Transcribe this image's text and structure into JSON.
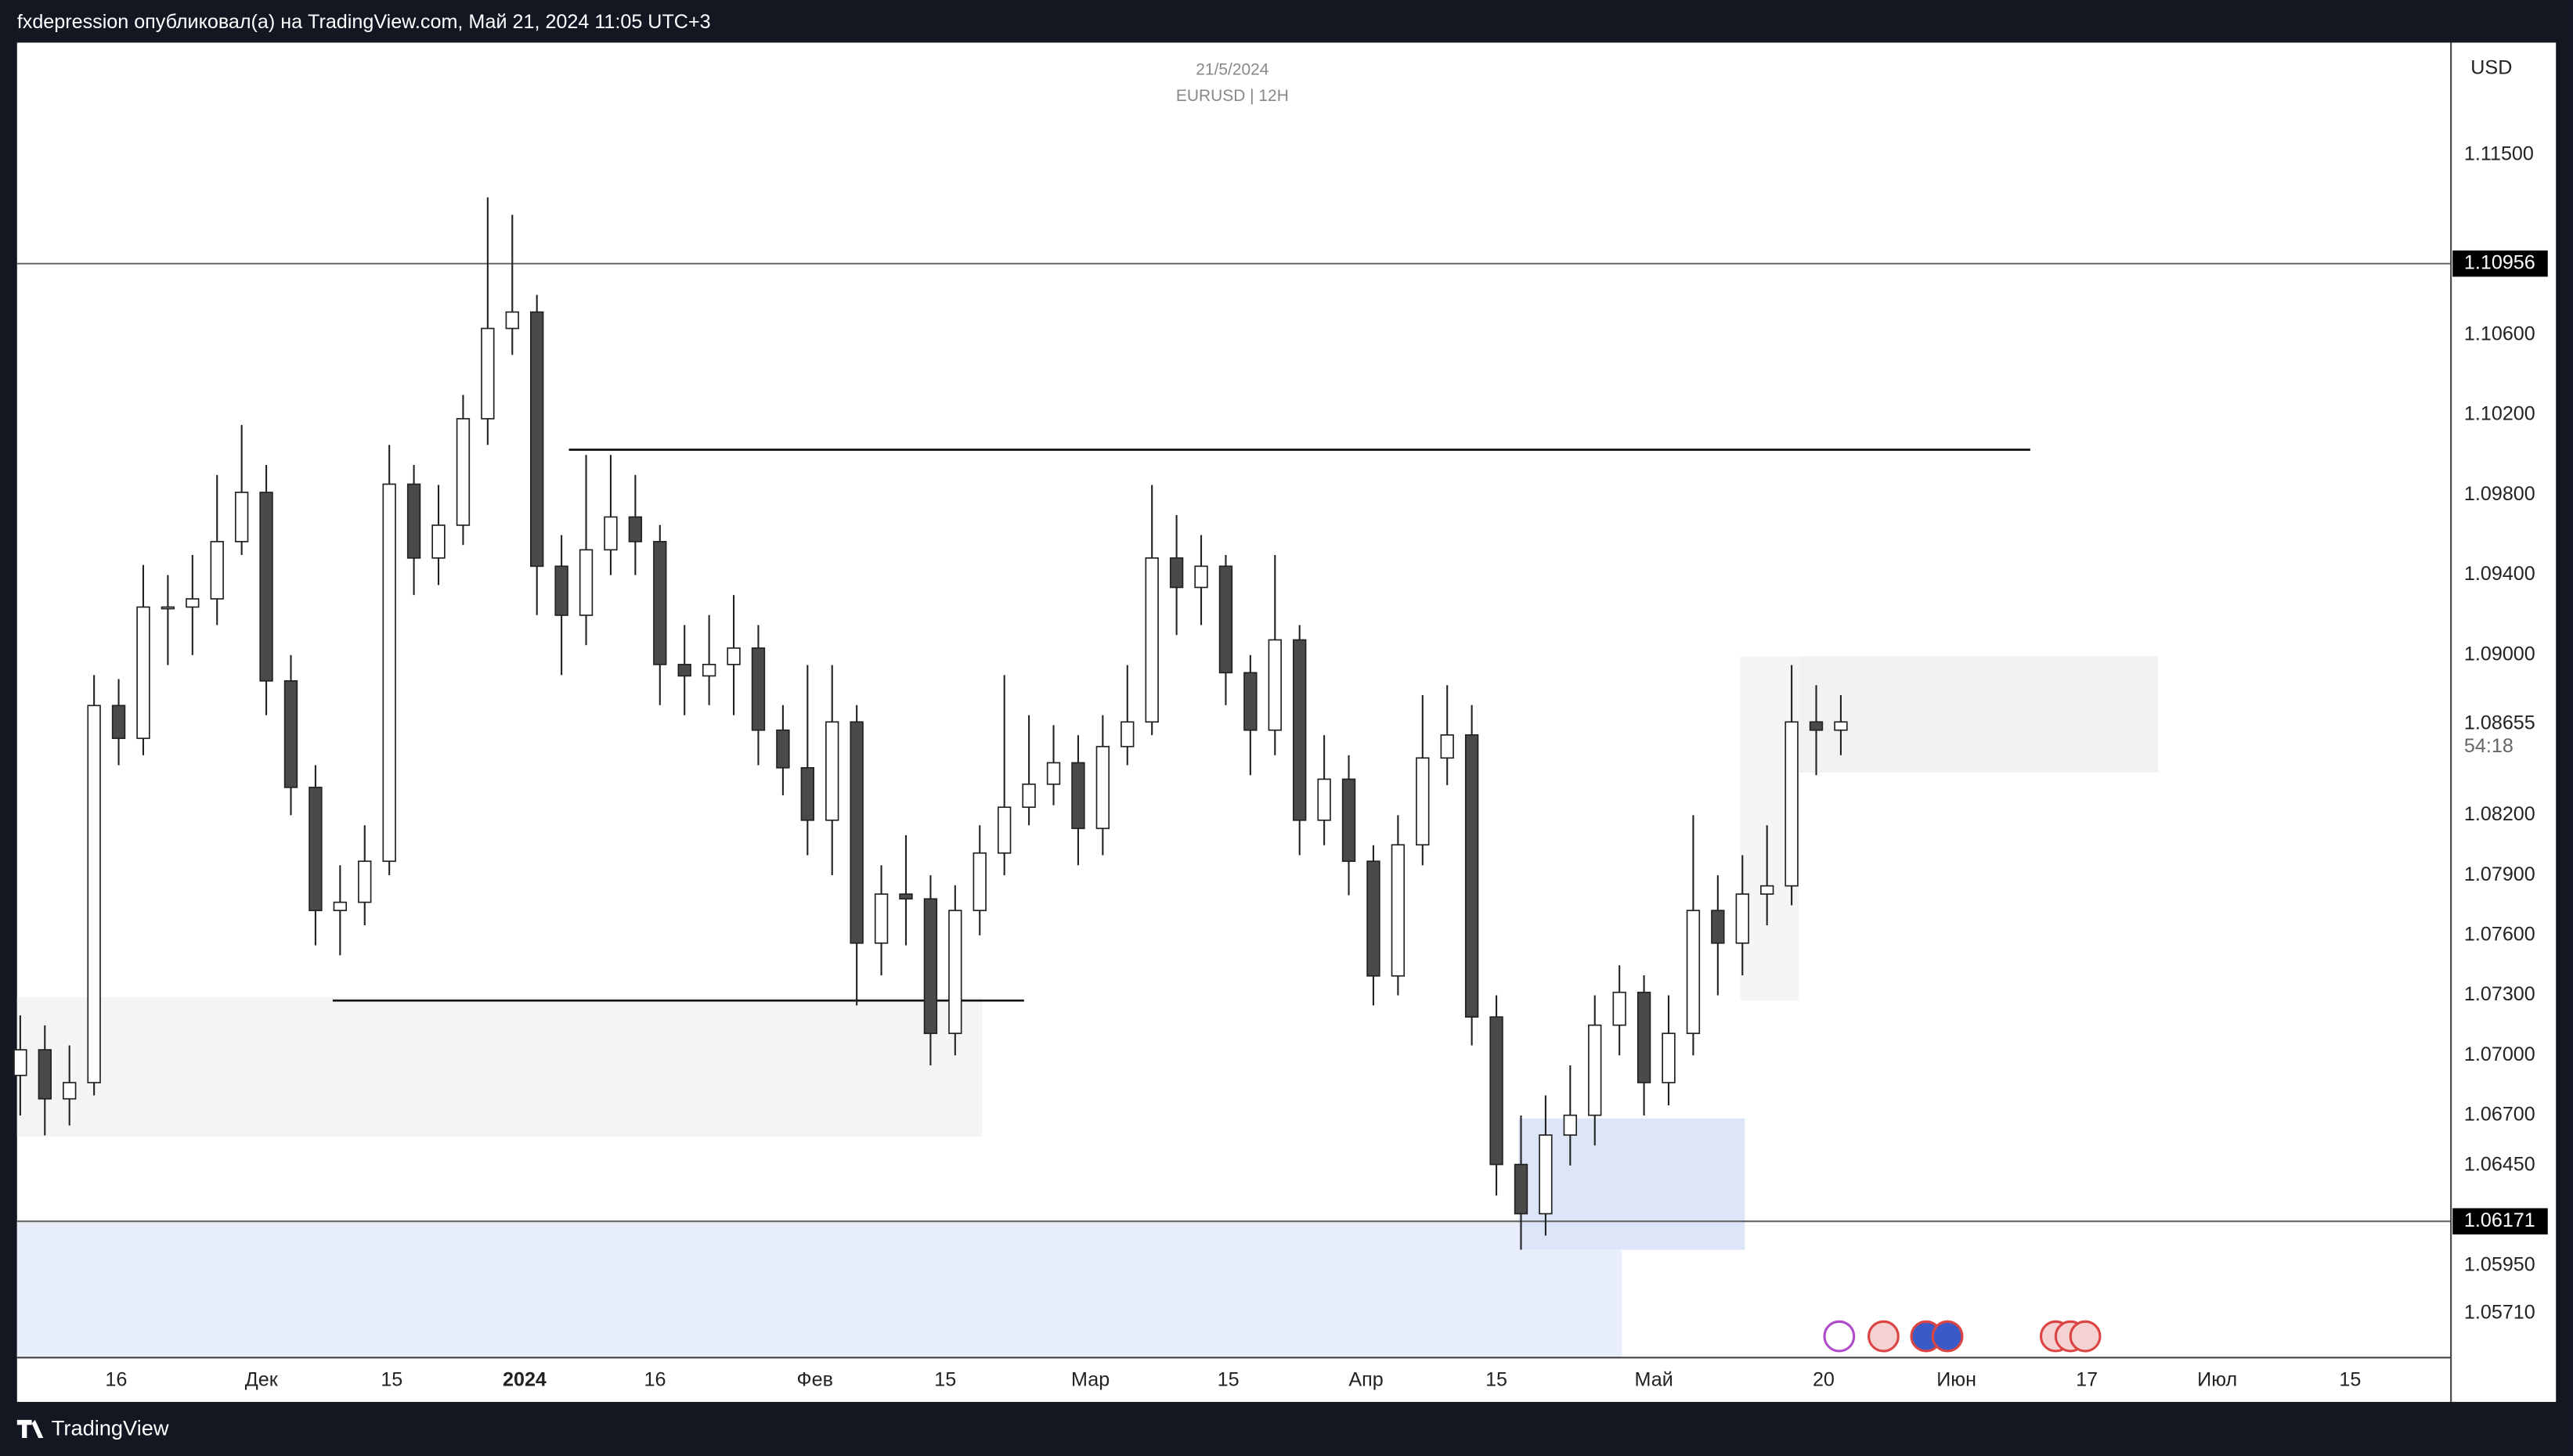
{
  "header": {
    "text": "fxdepression опубликовал(а) на TradingView.com, Май 21, 2024 11:05 UTC+3"
  },
  "chart_data": {
    "type": "candlestick",
    "date": "21/5/2024",
    "symbol": "EURUSD | 12H",
    "currency": "USD",
    "candles": [
      [
        1.069,
        1.072,
        1.067,
        1.07028
      ],
      [
        1.07028,
        1.0715,
        1.066,
        1.06783
      ],
      [
        1.06783,
        1.0705,
        1.0665,
        1.06864
      ],
      [
        1.06864,
        1.089,
        1.068,
        1.08748
      ],
      [
        1.08748,
        1.0888,
        1.0845,
        1.08584
      ],
      [
        1.08584,
        1.0945,
        1.085,
        1.0924
      ],
      [
        1.0924,
        1.094,
        1.0895,
        1.0924
      ],
      [
        1.0924,
        1.095,
        1.09,
        1.09281
      ],
      [
        1.09281,
        1.099,
        1.0915,
        1.09567
      ],
      [
        1.09567,
        1.1015,
        1.095,
        1.09813
      ],
      [
        1.09813,
        1.0995,
        1.087,
        1.08871
      ],
      [
        1.08871,
        1.09,
        1.082,
        1.08339
      ],
      [
        1.08339,
        1.0845,
        1.0755,
        1.07724
      ],
      [
        1.07724,
        1.0795,
        1.075,
        1.07765
      ],
      [
        1.07765,
        1.0815,
        1.0765,
        1.0797
      ],
      [
        1.0797,
        1.1005,
        1.079,
        1.09854
      ],
      [
        1.09854,
        1.0995,
        1.093,
        1.09485
      ],
      [
        1.09485,
        1.0985,
        1.0935,
        1.09649
      ],
      [
        1.09649,
        1.103,
        1.0955,
        1.10181
      ],
      [
        1.10181,
        1.11287,
        1.1005,
        1.10632
      ],
      [
        1.10632,
        1.112,
        1.105,
        1.10714
      ],
      [
        1.10714,
        1.108,
        1.092,
        1.09444
      ],
      [
        1.09444,
        1.096,
        1.089,
        1.09199
      ],
      [
        1.09199,
        1.1,
        1.0905,
        1.09526
      ],
      [
        1.09526,
        1.1,
        1.094,
        1.0969
      ],
      [
        1.0969,
        1.099,
        1.094,
        1.09567
      ],
      [
        1.09567,
        1.0965,
        1.0875,
        1.08953
      ],
      [
        1.08953,
        1.0915,
        1.087,
        1.08896
      ],
      [
        1.08896,
        1.092,
        1.0875,
        1.08953
      ],
      [
        1.08953,
        1.093,
        1.087,
        1.09035
      ],
      [
        1.09035,
        1.0915,
        1.0845,
        1.08625
      ],
      [
        1.08625,
        1.0875,
        1.083,
        1.08437
      ],
      [
        1.08437,
        1.0895,
        1.08,
        1.08175
      ],
      [
        1.08175,
        1.0895,
        1.079,
        1.08666
      ],
      [
        1.08666,
        1.0875,
        1.0725,
        1.07561
      ],
      [
        1.07561,
        1.0795,
        1.074,
        1.07806
      ],
      [
        1.07806,
        1.081,
        1.0755,
        1.07782
      ],
      [
        1.07782,
        1.079,
        1.0695,
        1.0711
      ],
      [
        1.0711,
        1.0785,
        1.07,
        1.07724
      ],
      [
        1.07724,
        1.0815,
        1.076,
        1.08011
      ],
      [
        1.08011,
        1.089,
        1.079,
        1.0824
      ],
      [
        1.0824,
        1.087,
        1.0815,
        1.08355
      ],
      [
        1.08355,
        1.0865,
        1.0825,
        1.08462
      ],
      [
        1.08462,
        1.086,
        1.0795,
        1.08134
      ],
      [
        1.08134,
        1.087,
        1.08,
        1.08543
      ],
      [
        1.08543,
        1.0895,
        1.0845,
        1.08666
      ],
      [
        1.08666,
        1.0985,
        1.086,
        1.09485
      ],
      [
        1.09485,
        1.097,
        1.091,
        1.09338
      ],
      [
        1.09338,
        1.096,
        1.0915,
        1.09444
      ],
      [
        1.09444,
        1.095,
        1.0875,
        1.08912
      ],
      [
        1.08912,
        1.09,
        1.084,
        1.08625
      ],
      [
        1.08625,
        1.095,
        1.085,
        1.09076
      ],
      [
        1.09076,
        1.0915,
        1.08,
        1.08175
      ],
      [
        1.08175,
        1.086,
        1.0805,
        1.0838
      ],
      [
        1.0838,
        1.085,
        1.078,
        1.0797
      ],
      [
        1.0797,
        1.0805,
        1.0725,
        1.07397
      ],
      [
        1.07397,
        1.082,
        1.073,
        1.08052
      ],
      [
        1.08052,
        1.088,
        1.0795,
        1.08486
      ],
      [
        1.08486,
        1.0885,
        1.0835,
        1.08601
      ],
      [
        1.08601,
        1.0875,
        1.0705,
        1.07192
      ],
      [
        1.07192,
        1.073,
        1.063,
        1.06455
      ],
      [
        1.06455,
        1.067,
        1.06029,
        1.06209
      ],
      [
        1.06209,
        1.068,
        1.061,
        1.06602
      ],
      [
        1.06602,
        1.0695,
        1.0645,
        1.06701
      ],
      [
        1.06701,
        1.073,
        1.0655,
        1.07151
      ],
      [
        1.07151,
        1.0745,
        1.07,
        1.07315
      ],
      [
        1.07315,
        1.074,
        1.067,
        1.06864
      ],
      [
        1.06864,
        1.073,
        1.0675,
        1.0711
      ],
      [
        1.0711,
        1.082,
        1.07,
        1.07724
      ],
      [
        1.07724,
        1.079,
        1.073,
        1.07561
      ],
      [
        1.07561,
        1.08,
        1.074,
        1.07806
      ],
      [
        1.07806,
        1.0815,
        1.0765,
        1.07847
      ],
      [
        1.07847,
        1.0895,
        1.0775,
        1.08666
      ],
      [
        1.08666,
        1.0885,
        1.084,
        1.08625
      ],
      [
        1.08625,
        1.088,
        1.085,
        1.08666
      ]
    ],
    "xlim": [
      -0.13,
      98.8
    ],
    "ylim": [
      1.0549,
      1.1206
    ],
    "xticks": [
      {
        "value": 3.9,
        "label": "16"
      },
      {
        "value": 9.8,
        "label": "Дек"
      },
      {
        "value": 15.1,
        "label": "15"
      },
      {
        "value": 20.5,
        "label": "2024"
      },
      {
        "value": 25.8,
        "label": "16"
      },
      {
        "value": 32.3,
        "label": "Фев"
      },
      {
        "value": 37.6,
        "label": "15"
      },
      {
        "value": 43.5,
        "label": "Мар"
      },
      {
        "value": 49.1,
        "label": "15"
      },
      {
        "value": 54.7,
        "label": "Апр"
      },
      {
        "value": 60,
        "label": "15"
      },
      {
        "value": 66.4,
        "label": "Май"
      },
      {
        "value": 73.3,
        "label": "20"
      },
      {
        "value": 78.7,
        "label": "Июн"
      },
      {
        "value": 84,
        "label": "17"
      },
      {
        "value": 89.3,
        "label": "Июл"
      },
      {
        "value": 94.7,
        "label": "15"
      }
    ],
    "yticks": [
      {
        "value": 1.115,
        "label": "1.11500"
      },
      {
        "value": 1.106,
        "label": "1.10600"
      },
      {
        "value": 1.102,
        "label": "1.10200"
      },
      {
        "value": 1.098,
        "label": "1.09800"
      },
      {
        "value": 1.094,
        "label": "1.09400"
      },
      {
        "value": 1.09,
        "label": "1.09000"
      },
      {
        "value": 1.082,
        "label": "1.08200"
      },
      {
        "value": 1.079,
        "label": "1.07900"
      },
      {
        "value": 1.076,
        "label": "1.07600"
      },
      {
        "value": 1.073,
        "label": "1.07300"
      },
      {
        "value": 1.07,
        "label": "1.07000"
      },
      {
        "value": 1.067,
        "label": "1.06700"
      },
      {
        "value": 1.0645,
        "label": "1.06450"
      },
      {
        "value": 1.0595,
        "label": "1.05950"
      },
      {
        "value": 1.0571,
        "label": "1.05710"
      }
    ],
    "levels": [
      {
        "value": 1.10956,
        "label": "1.10956"
      },
      {
        "value": 1.06171,
        "label": "1.06171"
      }
    ],
    "last_price": {
      "value": 1.08655,
      "label": "1.08655"
    },
    "countdown": "54:18",
    "lines": [
      {
        "from": 22.3,
        "to": 81.7,
        "value": 1.10026
      },
      {
        "from": 12.7,
        "to": 40.8,
        "value": 1.07274
      }
    ],
    "zones": [
      {
        "from": -0.13,
        "to": 39.1,
        "top": 1.07291,
        "bottom": 1.06595,
        "color": "#f3f4f3"
      },
      {
        "from": -0.13,
        "to": 65.1,
        "top": 1.06171,
        "bottom": 1.0549,
        "color": "#e9eefb"
      },
      {
        "from": 60.9,
        "to": 70.1,
        "top": 1.06685,
        "bottom": 1.06029,
        "color": "#dde5f9"
      },
      {
        "from": 69.9,
        "to": 72.3,
        "top": 1.08994,
        "bottom": 1.07274,
        "color": "#f5f5f5"
      },
      {
        "from": 72.3,
        "to": 86.9,
        "top": 1.08994,
        "bottom": 1.08413,
        "color": "#f1f2f1"
      }
    ],
    "colors": {
      "up": "#ffffff",
      "down": "#4a4a4a",
      "wick": "#222222"
    }
  },
  "footer": {
    "brand": "TradingView"
  }
}
